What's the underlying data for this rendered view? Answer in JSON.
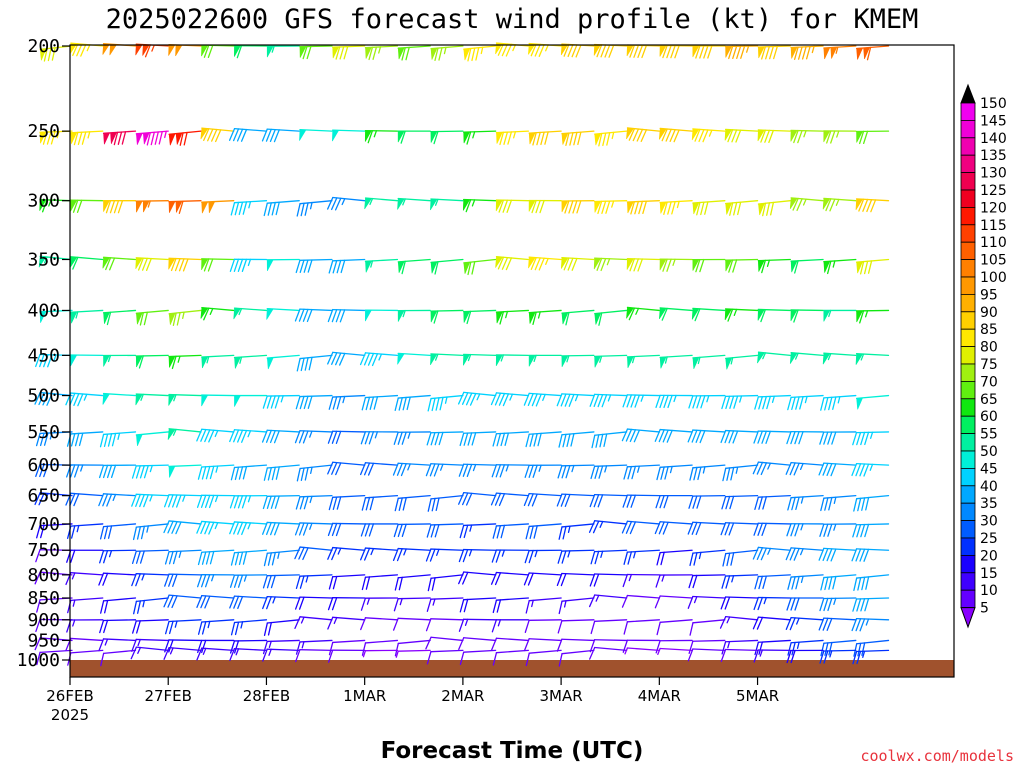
{
  "chart_data": {
    "type": "wind-barb",
    "title": "2025022600 GFS forecast wind profile (kt) for KMEM",
    "xlabel": "Forecast Time (UTC)",
    "ylabel": "",
    "y_axis": {
      "scale": "log",
      "reversed": true,
      "ticks": [
        200,
        250,
        300,
        350,
        400,
        450,
        500,
        550,
        600,
        650,
        700,
        750,
        800,
        850,
        900,
        950,
        1000
      ],
      "ylim": [
        1040,
        200
      ]
    },
    "x_axis": {
      "ticks": [
        "26FEB",
        "27FEB",
        "28FEB",
        "1MAR",
        "2MAR",
        "3MAR",
        "4MAR",
        "5MAR"
      ],
      "first_tick_sublabel": "2025",
      "range_hours": [
        0,
        216
      ],
      "step_hours": 6
    },
    "levels": [
      200,
      250,
      300,
      350,
      400,
      450,
      500,
      550,
      600,
      650,
      700,
      750,
      800,
      850,
      900,
      950,
      975
    ],
    "speeds": [
      [
        80,
        85,
        100,
        115,
        100,
        70,
        60,
        55,
        70,
        80,
        75,
        70,
        75,
        85,
        85,
        85,
        90,
        90,
        90,
        90,
        90,
        95,
        90,
        95,
        105,
        110,
        110,
        110
      ],
      [
        85,
        85,
        130,
        145,
        120,
        90,
        40,
        40,
        50,
        50,
        65,
        60,
        60,
        65,
        85,
        90,
        90,
        85,
        90,
        90,
        85,
        80,
        80,
        75,
        75,
        70,
        90,
        100
      ],
      [
        65,
        70,
        90,
        105,
        110,
        100,
        45,
        40,
        35,
        35,
        55,
        55,
        55,
        65,
        80,
        80,
        90,
        85,
        90,
        85,
        80,
        80,
        80,
        75,
        75,
        90,
        100,
        105
      ],
      [
        55,
        60,
        70,
        80,
        90,
        70,
        45,
        50,
        40,
        40,
        55,
        60,
        60,
        70,
        80,
        85,
        80,
        75,
        80,
        75,
        70,
        70,
        65,
        60,
        65,
        80,
        85,
        90
      ],
      [
        50,
        55,
        60,
        70,
        75,
        65,
        55,
        50,
        40,
        40,
        50,
        55,
        60,
        60,
        65,
        65,
        60,
        60,
        65,
        60,
        60,
        65,
        60,
        60,
        55,
        65,
        75,
        85
      ],
      [
        45,
        50,
        55,
        60,
        65,
        55,
        55,
        50,
        40,
        40,
        45,
        50,
        55,
        55,
        55,
        55,
        55,
        55,
        55,
        55,
        55,
        55,
        55,
        55,
        55,
        55,
        65,
        75
      ],
      [
        40,
        45,
        50,
        55,
        55,
        50,
        50,
        45,
        40,
        35,
        40,
        40,
        45,
        45,
        45,
        45,
        45,
        45,
        45,
        45,
        45,
        45,
        45,
        45,
        45,
        50,
        55,
        60
      ],
      [
        35,
        40,
        45,
        50,
        55,
        45,
        45,
        40,
        35,
        30,
        35,
        35,
        40,
        40,
        40,
        40,
        40,
        40,
        40,
        40,
        40,
        40,
        40,
        40,
        40,
        45,
        50,
        55
      ],
      [
        30,
        35,
        40,
        45,
        50,
        45,
        40,
        40,
        35,
        30,
        30,
        35,
        35,
        35,
        35,
        35,
        35,
        35,
        35,
        35,
        35,
        35,
        35,
        35,
        40,
        45,
        45,
        50
      ],
      [
        25,
        30,
        35,
        45,
        45,
        45,
        45,
        40,
        35,
        30,
        30,
        30,
        30,
        30,
        30,
        30,
        30,
        30,
        30,
        30,
        30,
        30,
        30,
        35,
        35,
        40,
        45,
        50
      ],
      [
        20,
        25,
        30,
        35,
        40,
        45,
        45,
        40,
        35,
        30,
        30,
        30,
        30,
        25,
        30,
        30,
        25,
        25,
        30,
        30,
        30,
        30,
        30,
        35,
        35,
        40,
        45,
        45
      ],
      [
        10,
        20,
        25,
        30,
        35,
        40,
        40,
        35,
        30,
        25,
        25,
        25,
        25,
        25,
        25,
        25,
        25,
        25,
        25,
        20,
        25,
        30,
        35,
        35,
        40,
        40,
        45,
        45
      ],
      [
        10,
        15,
        20,
        25,
        30,
        35,
        35,
        30,
        25,
        20,
        20,
        20,
        20,
        20,
        20,
        20,
        20,
        20,
        15,
        15,
        20,
        25,
        30,
        35,
        40,
        40,
        40,
        45
      ],
      [
        10,
        15,
        20,
        25,
        30,
        30,
        30,
        25,
        20,
        20,
        15,
        15,
        15,
        20,
        20,
        15,
        15,
        15,
        10,
        10,
        15,
        20,
        25,
        30,
        35,
        40,
        40,
        40
      ],
      [
        10,
        15,
        20,
        20,
        25,
        25,
        25,
        20,
        15,
        15,
        10,
        10,
        10,
        15,
        15,
        10,
        10,
        10,
        10,
        10,
        10,
        15,
        20,
        25,
        30,
        35,
        35,
        35
      ],
      [
        10,
        10,
        15,
        15,
        20,
        20,
        20,
        15,
        15,
        10,
        10,
        10,
        10,
        10,
        10,
        10,
        10,
        10,
        10,
        10,
        10,
        15,
        20,
        25,
        30,
        30,
        30,
        30
      ],
      [
        10,
        10,
        10,
        15,
        15,
        15,
        15,
        15,
        10,
        10,
        5,
        5,
        10,
        10,
        10,
        10,
        10,
        10,
        5,
        5,
        10,
        10,
        15,
        20,
        25,
        25,
        25,
        25
      ]
    ],
    "colorbar": {
      "labels": [
        "5",
        "10",
        "15",
        "20",
        "25",
        "30",
        "35",
        "40",
        "45",
        "50",
        "55",
        "60",
        "65",
        "70",
        "75",
        "80",
        "85",
        "90",
        "95",
        "100",
        "105",
        "110",
        "115",
        "120",
        "125",
        "130",
        "135",
        "140",
        "145",
        "150"
      ],
      "colors": [
        "#8a00ff",
        "#6400ff",
        "#3f00ff",
        "#1a00ff",
        "#0030ff",
        "#005cff",
        "#0088ff",
        "#00a8ff",
        "#00d2ff",
        "#00f0d8",
        "#00f0a0",
        "#00f060",
        "#10e810",
        "#60f010",
        "#a0f010",
        "#e0f000",
        "#ffe800",
        "#ffd000",
        "#ffb000",
        "#ff9800",
        "#ff8000",
        "#ff6000",
        "#ff4000",
        "#ff1800",
        "#f00020",
        "#f00050",
        "#f00080",
        "#f000b0",
        "#f000d8",
        "#f000f0"
      ],
      "overflow_color": "#000000"
    },
    "ground_color": "#a0522d",
    "grid": false,
    "legend": "right colorbar"
  },
  "credit": "coolwx.com/models"
}
